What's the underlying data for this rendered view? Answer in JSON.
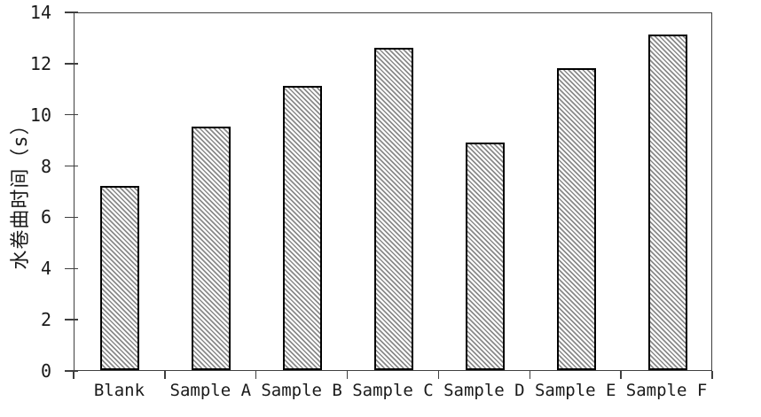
{
  "chart_data": {
    "type": "bar",
    "title": "",
    "categories": [
      "Blank",
      "Sample A",
      "Sample B",
      "Sample C",
      "Sample D",
      "Sample E",
      "Sample F"
    ],
    "values": [
      7.2,
      9.5,
      11.1,
      12.6,
      8.9,
      11.8,
      13.1
    ],
    "xlabel": "",
    "ylabel": "水卷曲时间（s）",
    "ylim": [
      0,
      14
    ],
    "yticks": [
      0,
      2,
      4,
      6,
      8,
      10,
      12,
      14
    ],
    "ytick_labels": [
      "0",
      "2",
      "4",
      "6",
      "8",
      "10",
      "12",
      "14"
    ],
    "grid": false,
    "legend": null,
    "bar_style": "diagonal-hatch",
    "colors": {
      "bar_hatch": "#8a8a8a",
      "bar_fill": "#ffffff",
      "bar_outline": "#000000",
      "axis": "#3f3f3f",
      "text": "#1a1a1a",
      "background": "#ffffff"
    }
  }
}
